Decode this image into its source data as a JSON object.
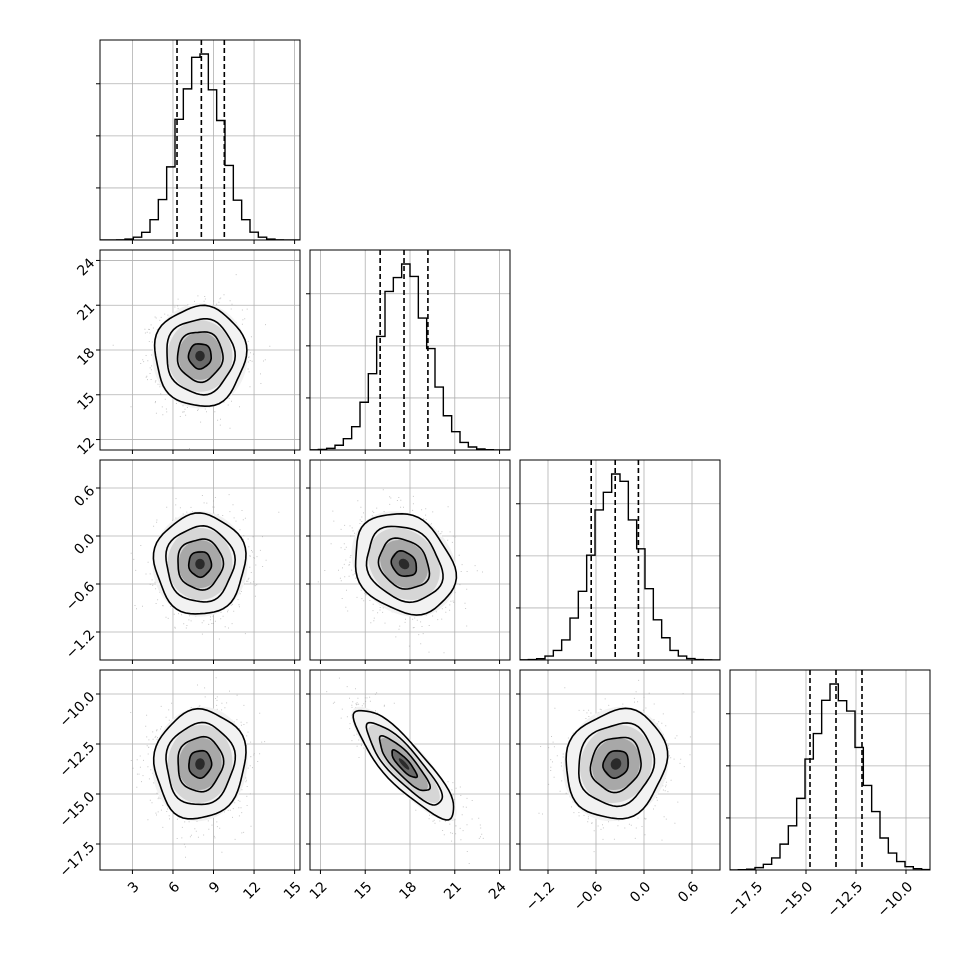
{
  "chart_data": {
    "type": "corner",
    "dims": 4,
    "quantiles_shown": [
      0.16,
      0.5,
      0.84
    ],
    "grid": true,
    "axes": [
      {
        "range": [
          0.6,
          15.4
        ],
        "ticks": [
          3,
          6,
          9,
          12,
          15
        ],
        "tick_labels": [
          "3",
          "6",
          "9",
          "12",
          "15"
        ],
        "mean": 8.0,
        "sd": 1.6,
        "quantile_lines": [
          6.3,
          8.1,
          9.8
        ]
      },
      {
        "range": [
          11.3,
          24.7
        ],
        "ticks": [
          12,
          15,
          18,
          21,
          24
        ],
        "tick_labels": [
          "12",
          "15",
          "18",
          "21",
          "24"
        ],
        "mean": 17.6,
        "sd": 1.6,
        "quantile_lines": [
          16.0,
          17.6,
          19.2
        ]
      },
      {
        "range": [
          -1.55,
          0.95
        ],
        "ticks": [
          -1.2,
          -0.6,
          0.0,
          0.6
        ],
        "tick_labels": [
          "−1.2",
          "−0.6",
          "0.0",
          "0.6"
        ],
        "mean": -0.35,
        "sd": 0.3,
        "quantile_lines": [
          -0.66,
          -0.36,
          -0.07
        ]
      },
      {
        "range": [
          -18.8,
          -8.8
        ],
        "ticks": [
          -17.5,
          -15.0,
          -12.5,
          -10.0
        ],
        "tick_labels": [
          "−17.5",
          "−15.0",
          "−12.5",
          "−10.0"
        ],
        "mean": -13.5,
        "sd": 1.3,
        "quantile_lines": [
          -14.8,
          -13.5,
          -12.2
        ]
      }
    ],
    "correlations": [
      {
        "pair": [
          1,
          0
        ],
        "rho": 0.0
      },
      {
        "pair": [
          2,
          0
        ],
        "rho": 0.0
      },
      {
        "pair": [
          2,
          1
        ],
        "rho": -0.2
      },
      {
        "pair": [
          3,
          0
        ],
        "rho": 0.05
      },
      {
        "pair": [
          3,
          1
        ],
        "rho": -0.85
      },
      {
        "pair": [
          3,
          2
        ],
        "rho": 0.1
      }
    ],
    "contour_levels_sigma": [
      0.5,
      1.0,
      1.5,
      2.0
    ],
    "colors": {
      "ink": "#000000",
      "grid": "#b0b0b0",
      "points": "#9a9a9a"
    }
  }
}
